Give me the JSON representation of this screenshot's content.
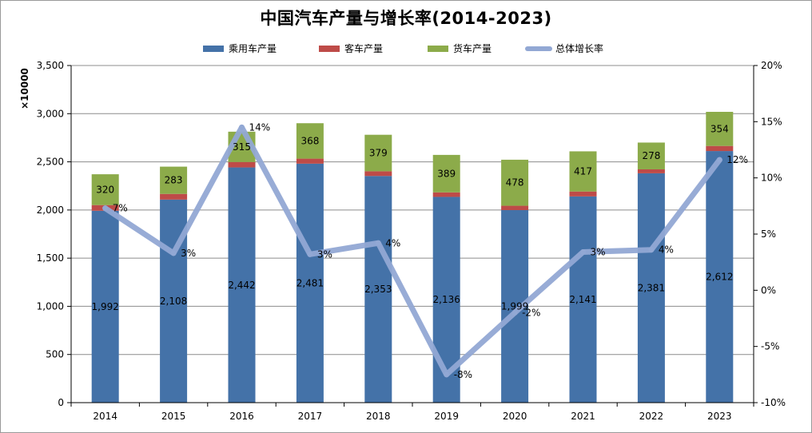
{
  "chart_data": {
    "type": "bar",
    "title": "中国汽车产量与增长率(2014-2023)",
    "y_unit_label": "×10000",
    "categories": [
      "2014",
      "2015",
      "2016",
      "2017",
      "2018",
      "2019",
      "2020",
      "2021",
      "2022",
      "2023"
    ],
    "series": [
      {
        "name": "乘用车产量",
        "kind": "stacked-bar",
        "axis": "left",
        "color": "#4472a8",
        "values": [
          1992,
          2108,
          2442,
          2481,
          2353,
          2136,
          1999,
          2141,
          2381,
          2612
        ],
        "labels": [
          "1,992",
          "2,108",
          "2,442",
          "2,481",
          "2,353",
          "2,136",
          "1,999",
          "2,141",
          "2,381",
          "2,612"
        ]
      },
      {
        "name": "客车产量",
        "kind": "stacked-bar",
        "axis": "left",
        "color": "#be4b48",
        "values": [
          59,
          59,
          56,
          52,
          49,
          47,
          45,
          51,
          41,
          53
        ],
        "labels": []
      },
      {
        "name": "货车产量",
        "kind": "stacked-bar",
        "axis": "left",
        "color": "#8cab4a",
        "values": [
          320,
          283,
          315,
          368,
          379,
          389,
          478,
          417,
          278,
          354
        ],
        "labels": [
          "320",
          "283",
          "315",
          "368",
          "379",
          "389",
          "478",
          "417",
          "278",
          "354"
        ]
      },
      {
        "name": "总体增长率",
        "kind": "line",
        "axis": "right",
        "color": "#92a8d4",
        "values": [
          7.3,
          3.3,
          14.5,
          3.2,
          4.2,
          -7.5,
          -2,
          3.4,
          3.6,
          11.6
        ],
        "labels": [
          "7%",
          "3%",
          "14%",
          "3%",
          "4%",
          "-8%",
          "-2%",
          "3%",
          "4%",
          "12%"
        ]
      }
    ],
    "y_left": {
      "min": 0,
      "max": 3500,
      "step": 500,
      "tick_labels": [
        "0",
        "500",
        "1,000",
        "1,500",
        "2,000",
        "2,500",
        "3,000",
        "3,500"
      ]
    },
    "y_right": {
      "min": -10,
      "max": 20,
      "step": 5,
      "tick_labels": [
        "-10%",
        "-5%",
        "0%",
        "5%",
        "10%",
        "15%",
        "20%"
      ]
    },
    "grid": true,
    "legend_position": "top"
  }
}
